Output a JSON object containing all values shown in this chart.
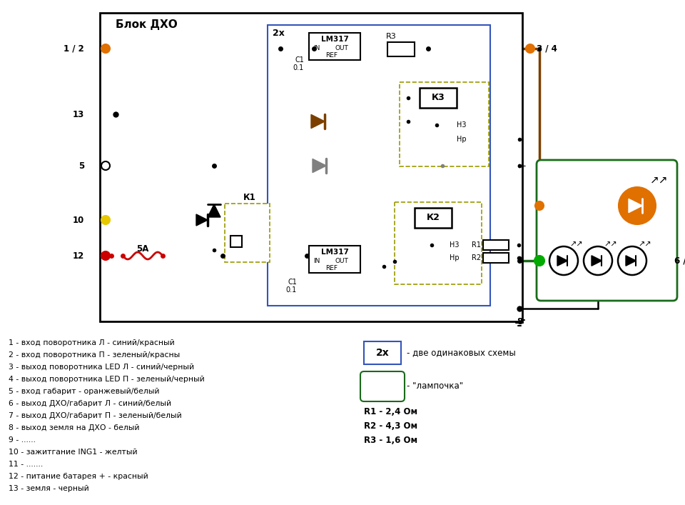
{
  "title": "Блок ДХО",
  "bg_color": "#ffffff",
  "legend_items": [
    "1 - вход поворотника Л - синий/красный",
    "2 - вход поворотника П - зеленый/красны",
    "3 - выход поворотника LED Л - синий/черный",
    "4 - выход поворотника LED П - зеленый/черный",
    "5 - вход габарит - оранжевый/белый",
    "6 - выход ДХО/габарит Л - синий/белый",
    "7 - выход ДХО/габарит П - зеленый/белый",
    "8 - выход земля на ДХО - белый",
    "9 - ......",
    "10 - зажитгание ING1 - желтый",
    "11 - .......",
    "12 - питание батарея + - красный",
    "13 - земля - черный"
  ],
  "resistor_values": [
    "R1 - 2,4 Ом",
    "R2 - 4,3 Ом",
    "R3 - 1,6 Ом"
  ],
  "legend_2x": "- две одинаковых схемы",
  "legend_lamp": "- \"лампочка\"",
  "BROWN": "#7B3F00",
  "GREEN_DARK": "#1a6b1a",
  "GRAY": "#808080",
  "RED": "#cc0000",
  "YELLOW": "#e6c800",
  "ORANGE": "#e07000",
  "BLACK": "#000000",
  "BLUE_DARK": "#000080",
  "GREEN_MED": "#00aa00"
}
